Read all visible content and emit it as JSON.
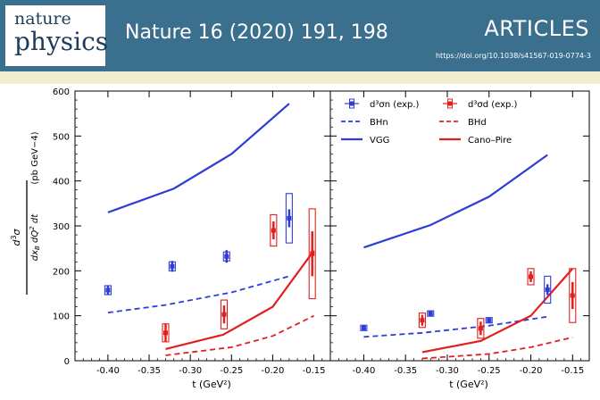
{
  "header": {
    "logo_line1": "nature",
    "logo_line2": "physics",
    "reference": "Nature 16 (2020) 191, 198",
    "section": "ARTICLES",
    "doi": "https://doi.org/10.1038/s41567-019-0774-3"
  },
  "colors": {
    "header_bg": "#3b6f8e",
    "blue": "#2f3dd6",
    "red": "#e0201e"
  },
  "chart_data": [
    {
      "type": "scatter",
      "panel": "left",
      "ylabel": "(pb GeV−4)",
      "xlabel": "t (GeV²)",
      "xlim": [
        -0.44,
        -0.13
      ],
      "ylim": [
        0,
        600
      ],
      "x_ticks": [
        -0.4,
        -0.35,
        -0.3,
        -0.25,
        -0.2,
        -0.15
      ],
      "y_ticks": [
        0,
        100,
        200,
        300,
        400,
        500,
        600
      ],
      "series": [
        {
          "name": "d³σn (exp.)",
          "kind": "points",
          "color": "blue",
          "x": [
            -0.4,
            -0.322,
            -0.256,
            -0.18
          ],
          "y": [
            157,
            210,
            232,
            317
          ],
          "err": [
            10,
            12,
            14,
            20
          ],
          "sys": [
            10,
            10,
            10,
            55
          ]
        },
        {
          "name": "d³σd (exp.)",
          "kind": "points",
          "color": "red",
          "x": [
            -0.33,
            -0.259,
            -0.199,
            -0.152
          ],
          "y": [
            62,
            103,
            290,
            238
          ],
          "err": [
            20,
            20,
            20,
            50
          ],
          "sys": [
            20,
            32,
            35,
            100
          ]
        },
        {
          "name": "BHn",
          "kind": "dashed",
          "color": "blue",
          "x": [
            -0.4,
            -0.33,
            -0.25,
            -0.18
          ],
          "y": [
            107,
            124,
            152,
            188
          ]
        },
        {
          "name": "BHd",
          "kind": "dashed",
          "color": "red",
          "x": [
            -0.33,
            -0.25,
            -0.2,
            -0.15
          ],
          "y": [
            12,
            30,
            55,
            100
          ]
        },
        {
          "name": "VGG",
          "kind": "solid",
          "color": "blue",
          "x": [
            -0.4,
            -0.32,
            -0.25,
            -0.18
          ],
          "y": [
            330,
            383,
            460,
            572
          ]
        },
        {
          "name": "Cano–Pire",
          "kind": "solid",
          "color": "red",
          "x": [
            -0.33,
            -0.26,
            -0.2,
            -0.15
          ],
          "y": [
            26,
            58,
            120,
            245
          ]
        }
      ]
    },
    {
      "type": "scatter",
      "panel": "right",
      "xlabel": "t (GeV²)",
      "xlim": [
        -0.44,
        -0.13
      ],
      "ylim": [
        0,
        600
      ],
      "x_ticks": [
        -0.4,
        -0.35,
        -0.3,
        -0.25,
        -0.2,
        -0.15
      ],
      "series": [
        {
          "name": "d³σn (exp.)",
          "kind": "points",
          "color": "blue",
          "x": [
            -0.4,
            -0.32,
            -0.25,
            -0.18
          ],
          "y": [
            73,
            105,
            90,
            158
          ],
          "err": [
            6,
            6,
            6,
            12
          ],
          "sys": [
            6,
            6,
            6,
            30
          ]
        },
        {
          "name": "d³σd (exp.)",
          "kind": "points",
          "color": "red",
          "x": [
            -0.33,
            -0.26,
            -0.2,
            -0.15
          ],
          "y": [
            90,
            72,
            187,
            145
          ],
          "err": [
            12,
            15,
            12,
            30
          ],
          "sys": [
            16,
            22,
            18,
            60
          ]
        },
        {
          "name": "BHn",
          "kind": "dashed",
          "color": "blue",
          "x": [
            -0.4,
            -0.33,
            -0.25,
            -0.18
          ],
          "y": [
            53,
            62,
            78,
            98
          ]
        },
        {
          "name": "BHd",
          "kind": "dashed",
          "color": "red",
          "x": [
            -0.33,
            -0.25,
            -0.2,
            -0.15
          ],
          "y": [
            5,
            15,
            30,
            52
          ]
        },
        {
          "name": "VGG",
          "kind": "solid",
          "color": "blue",
          "x": [
            -0.4,
            -0.32,
            -0.25,
            -0.18
          ],
          "y": [
            252,
            302,
            365,
            458
          ]
        },
        {
          "name": "Cano–Pire",
          "kind": "solid",
          "color": "red",
          "x": [
            -0.33,
            -0.26,
            -0.2,
            -0.15
          ],
          "y": [
            19,
            44,
            100,
            205
          ]
        }
      ]
    }
  ],
  "legend": [
    {
      "label": "d³σn (exp.)",
      "kind": "points",
      "color": "blue"
    },
    {
      "label": "d³σd (exp.)",
      "kind": "points",
      "color": "red"
    },
    {
      "label": "BHn",
      "kind": "dashed",
      "color": "blue"
    },
    {
      "label": "BHd",
      "kind": "dashed",
      "color": "red"
    },
    {
      "label": "VGG",
      "kind": "solid",
      "color": "blue"
    },
    {
      "label": "Cano–Pire",
      "kind": "solid",
      "color": "red"
    }
  ]
}
